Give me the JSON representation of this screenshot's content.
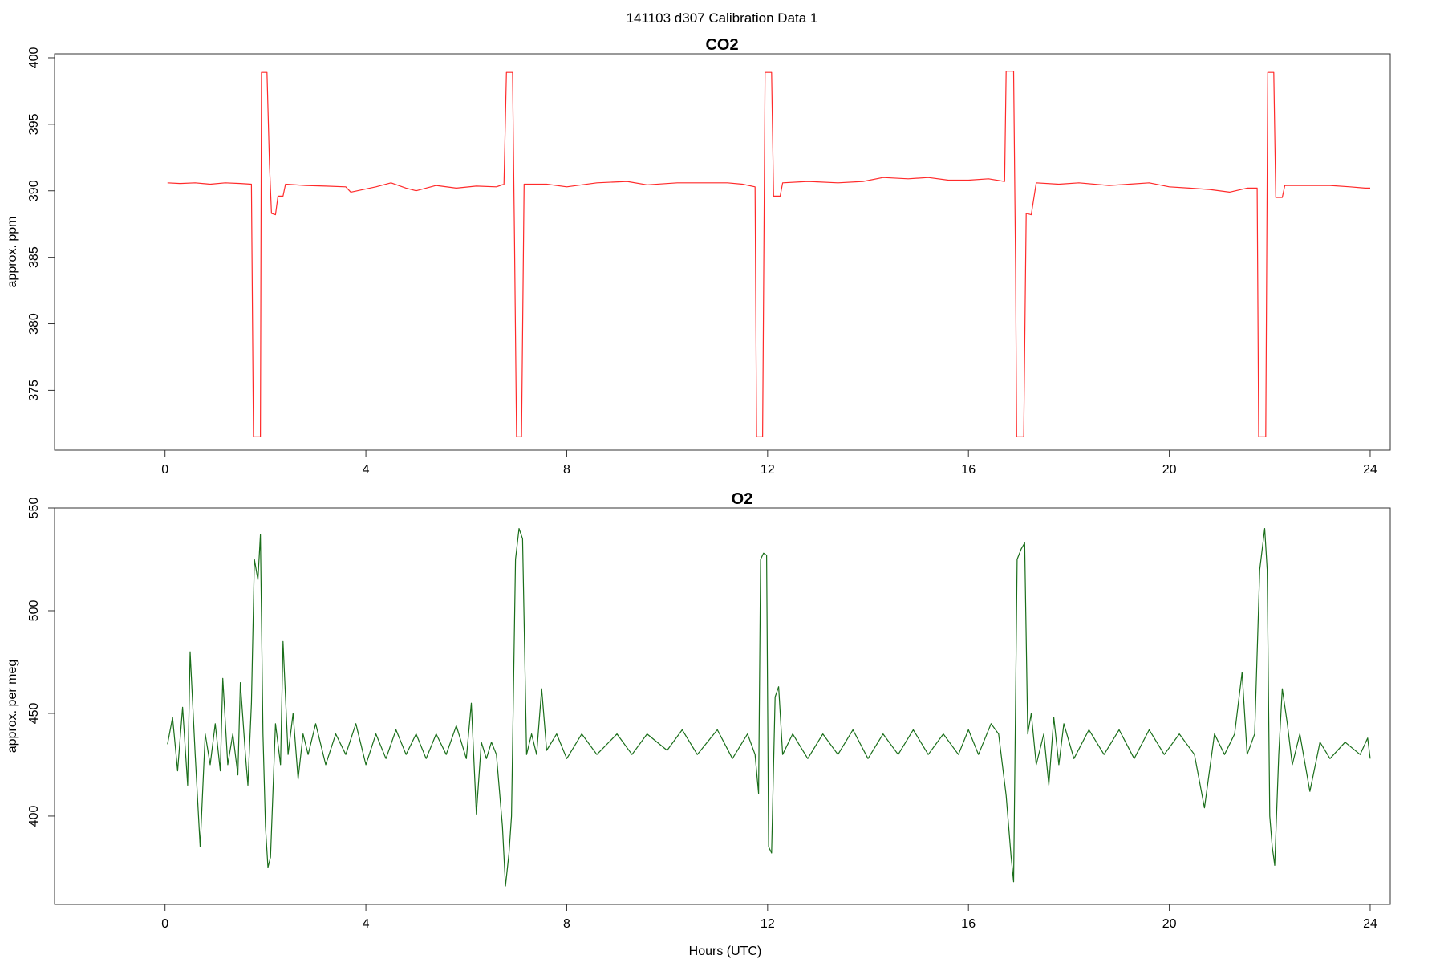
{
  "figure_title": "141103   d307   Calibration Data 1",
  "chart_data": [
    {
      "type": "line",
      "title": "CO2",
      "xlabel": "",
      "ylabel": "approx. ppm",
      "xlim": [
        -2.2,
        24.4
      ],
      "ylim": [
        370.5,
        400.3
      ],
      "xticks": [
        0,
        4,
        8,
        12,
        16,
        20,
        24
      ],
      "yticks": [
        375,
        380,
        385,
        390,
        395,
        400
      ],
      "grid": false,
      "color": "#ff2a2a",
      "series": [
        {
          "points": [
            [
              0.05,
              390.6
            ],
            [
              0.3,
              390.55
            ],
            [
              0.6,
              390.6
            ],
            [
              0.9,
              390.5
            ],
            [
              1.2,
              390.6
            ],
            [
              1.5,
              390.55
            ],
            [
              1.72,
              390.5
            ],
            [
              1.76,
              371.5
            ],
            [
              1.9,
              371.5
            ],
            [
              1.92,
              398.9
            ],
            [
              2.03,
              398.9
            ],
            [
              2.08,
              392.0
            ],
            [
              2.12,
              388.3
            ],
            [
              2.2,
              388.2
            ],
            [
              2.25,
              389.6
            ],
            [
              2.35,
              389.6
            ],
            [
              2.4,
              390.5
            ],
            [
              2.8,
              390.4
            ],
            [
              3.2,
              390.35
            ],
            [
              3.6,
              390.3
            ],
            [
              3.7,
              389.9
            ],
            [
              4.2,
              390.3
            ],
            [
              4.5,
              390.6
            ],
            [
              4.8,
              390.2
            ],
            [
              5.0,
              390.0
            ],
            [
              5.4,
              390.4
            ],
            [
              5.8,
              390.2
            ],
            [
              6.2,
              390.35
            ],
            [
              6.6,
              390.3
            ],
            [
              6.75,
              390.5
            ],
            [
              6.8,
              398.9
            ],
            [
              6.92,
              398.9
            ],
            [
              6.96,
              386.0
            ],
            [
              7.0,
              371.5
            ],
            [
              7.1,
              371.5
            ],
            [
              7.15,
              390.5
            ],
            [
              7.6,
              390.5
            ],
            [
              8.0,
              390.3
            ],
            [
              8.6,
              390.6
            ],
            [
              9.2,
              390.7
            ],
            [
              9.6,
              390.45
            ],
            [
              10.2,
              390.6
            ],
            [
              10.8,
              390.6
            ],
            [
              11.2,
              390.6
            ],
            [
              11.5,
              390.5
            ],
            [
              11.75,
              390.3
            ],
            [
              11.78,
              371.5
            ],
            [
              11.9,
              371.5
            ],
            [
              11.95,
              398.9
            ],
            [
              12.08,
              398.9
            ],
            [
              12.12,
              389.6
            ],
            [
              12.25,
              389.6
            ],
            [
              12.3,
              390.6
            ],
            [
              12.8,
              390.7
            ],
            [
              13.4,
              390.6
            ],
            [
              13.9,
              390.7
            ],
            [
              14.3,
              391.0
            ],
            [
              14.8,
              390.9
            ],
            [
              15.2,
              391.0
            ],
            [
              15.6,
              390.8
            ],
            [
              16.0,
              390.8
            ],
            [
              16.4,
              390.9
            ],
            [
              16.72,
              390.7
            ],
            [
              16.75,
              399.0
            ],
            [
              16.9,
              399.0
            ],
            [
              16.94,
              384.0
            ],
            [
              16.96,
              371.5
            ],
            [
              17.1,
              371.5
            ],
            [
              17.15,
              388.3
            ],
            [
              17.25,
              388.2
            ],
            [
              17.35,
              390.6
            ],
            [
              17.8,
              390.5
            ],
            [
              18.2,
              390.6
            ],
            [
              18.8,
              390.4
            ],
            [
              19.2,
              390.5
            ],
            [
              19.6,
              390.6
            ],
            [
              20.0,
              390.3
            ],
            [
              20.4,
              390.2
            ],
            [
              20.8,
              390.1
            ],
            [
              21.2,
              389.9
            ],
            [
              21.55,
              390.2
            ],
            [
              21.75,
              390.2
            ],
            [
              21.78,
              371.5
            ],
            [
              21.92,
              371.5
            ],
            [
              21.96,
              398.9
            ],
            [
              22.08,
              398.9
            ],
            [
              22.12,
              389.5
            ],
            [
              22.25,
              389.5
            ],
            [
              22.3,
              390.4
            ],
            [
              22.8,
              390.4
            ],
            [
              23.2,
              390.4
            ],
            [
              23.6,
              390.3
            ],
            [
              23.9,
              390.2
            ],
            [
              24.0,
              390.2
            ]
          ]
        }
      ]
    },
    {
      "type": "line",
      "title": "O2",
      "xlabel": "Hours (UTC)",
      "ylabel": "approx. per meg",
      "xlim": [
        -2.2,
        24.4
      ],
      "ylim": [
        357,
        550
      ],
      "xticks": [
        0,
        4,
        8,
        12,
        16,
        20,
        24
      ],
      "yticks": [
        400,
        450,
        500,
        550
      ],
      "grid": false,
      "color": "#1a6e1a",
      "series": [
        {
          "points": [
            [
              0.05,
              435
            ],
            [
              0.15,
              448
            ],
            [
              0.25,
              422
            ],
            [
              0.35,
              453
            ],
            [
              0.45,
              415
            ],
            [
              0.5,
              480
            ],
            [
              0.6,
              430
            ],
            [
              0.7,
              385
            ],
            [
              0.8,
              440
            ],
            [
              0.9,
              425
            ],
            [
              1.0,
              445
            ],
            [
              1.1,
              422
            ],
            [
              1.15,
              467
            ],
            [
              1.25,
              425
            ],
            [
              1.35,
              440
            ],
            [
              1.45,
              420
            ],
            [
              1.5,
              465
            ],
            [
              1.6,
              430
            ],
            [
              1.65,
              415
            ],
            [
              1.72,
              455
            ],
            [
              1.78,
              525
            ],
            [
              1.85,
              515
            ],
            [
              1.9,
              537
            ],
            [
              1.95,
              440
            ],
            [
              2.0,
              395
            ],
            [
              2.05,
              375
            ],
            [
              2.1,
              380
            ],
            [
              2.2,
              445
            ],
            [
              2.3,
              425
            ],
            [
              2.35,
              485
            ],
            [
              2.45,
              430
            ],
            [
              2.55,
              450
            ],
            [
              2.65,
              418
            ],
            [
              2.75,
              440
            ],
            [
              2.85,
              430
            ],
            [
              3.0,
              445
            ],
            [
              3.2,
              425
            ],
            [
              3.4,
              440
            ],
            [
              3.6,
              430
            ],
            [
              3.8,
              445
            ],
            [
              4.0,
              425
            ],
            [
              4.2,
              440
            ],
            [
              4.4,
              428
            ],
            [
              4.6,
              442
            ],
            [
              4.8,
              430
            ],
            [
              5.0,
              440
            ],
            [
              5.2,
              428
            ],
            [
              5.4,
              440
            ],
            [
              5.6,
              430
            ],
            [
              5.8,
              444
            ],
            [
              6.0,
              428
            ],
            [
              6.1,
              455
            ],
            [
              6.2,
              401
            ],
            [
              6.3,
              436
            ],
            [
              6.4,
              428
            ],
            [
              6.5,
              436
            ],
            [
              6.6,
              430
            ],
            [
              6.72,
              395
            ],
            [
              6.78,
              366
            ],
            [
              6.85,
              382
            ],
            [
              6.9,
              400
            ],
            [
              6.98,
              525
            ],
            [
              7.05,
              540
            ],
            [
              7.12,
              535
            ],
            [
              7.2,
              430
            ],
            [
              7.3,
              440
            ],
            [
              7.4,
              430
            ],
            [
              7.5,
              462
            ],
            [
              7.6,
              432
            ],
            [
              7.8,
              440
            ],
            [
              8.0,
              428
            ],
            [
              8.3,
              440
            ],
            [
              8.6,
              430
            ],
            [
              9.0,
              440
            ],
            [
              9.3,
              430
            ],
            [
              9.6,
              440
            ],
            [
              10.0,
              432
            ],
            [
              10.3,
              442
            ],
            [
              10.6,
              430
            ],
            [
              11.0,
              442
            ],
            [
              11.3,
              428
            ],
            [
              11.6,
              440
            ],
            [
              11.75,
              430
            ],
            [
              11.82,
              411
            ],
            [
              11.86,
              525
            ],
            [
              11.92,
              528
            ],
            [
              11.98,
              527
            ],
            [
              12.02,
              385
            ],
            [
              12.08,
              382
            ],
            [
              12.15,
              458
            ],
            [
              12.22,
              463
            ],
            [
              12.3,
              430
            ],
            [
              12.5,
              440
            ],
            [
              12.8,
              428
            ],
            [
              13.1,
              440
            ],
            [
              13.4,
              430
            ],
            [
              13.7,
              442
            ],
            [
              14.0,
              428
            ],
            [
              14.3,
              440
            ],
            [
              14.6,
              430
            ],
            [
              14.9,
              442
            ],
            [
              15.2,
              430
            ],
            [
              15.5,
              440
            ],
            [
              15.8,
              430
            ],
            [
              16.0,
              442
            ],
            [
              16.2,
              430
            ],
            [
              16.45,
              445
            ],
            [
              16.6,
              440
            ],
            [
              16.75,
              410
            ],
            [
              16.85,
              380
            ],
            [
              16.9,
              368
            ],
            [
              16.97,
              525
            ],
            [
              17.05,
              530
            ],
            [
              17.12,
              533
            ],
            [
              17.18,
              440
            ],
            [
              17.25,
              450
            ],
            [
              17.35,
              425
            ],
            [
              17.5,
              440
            ],
            [
              17.6,
              415
            ],
            [
              17.7,
              448
            ],
            [
              17.8,
              425
            ],
            [
              17.9,
              445
            ],
            [
              18.1,
              428
            ],
            [
              18.4,
              442
            ],
            [
              18.7,
              430
            ],
            [
              19.0,
              442
            ],
            [
              19.3,
              428
            ],
            [
              19.6,
              442
            ],
            [
              19.9,
              430
            ],
            [
              20.2,
              440
            ],
            [
              20.5,
              430
            ],
            [
              20.7,
              404
            ],
            [
              20.9,
              440
            ],
            [
              21.1,
              430
            ],
            [
              21.3,
              440
            ],
            [
              21.45,
              470
            ],
            [
              21.55,
              430
            ],
            [
              21.7,
              440
            ],
            [
              21.8,
              520
            ],
            [
              21.9,
              540
            ],
            [
              21.95,
              520
            ],
            [
              22.0,
              400
            ],
            [
              22.05,
              385
            ],
            [
              22.1,
              376
            ],
            [
              22.18,
              430
            ],
            [
              22.25,
              462
            ],
            [
              22.35,
              445
            ],
            [
              22.45,
              425
            ],
            [
              22.6,
              440
            ],
            [
              22.8,
              412
            ],
            [
              23.0,
              436
            ],
            [
              23.2,
              428
            ],
            [
              23.5,
              436
            ],
            [
              23.8,
              430
            ],
            [
              23.95,
              438
            ],
            [
              24.0,
              428
            ]
          ]
        }
      ]
    }
  ]
}
